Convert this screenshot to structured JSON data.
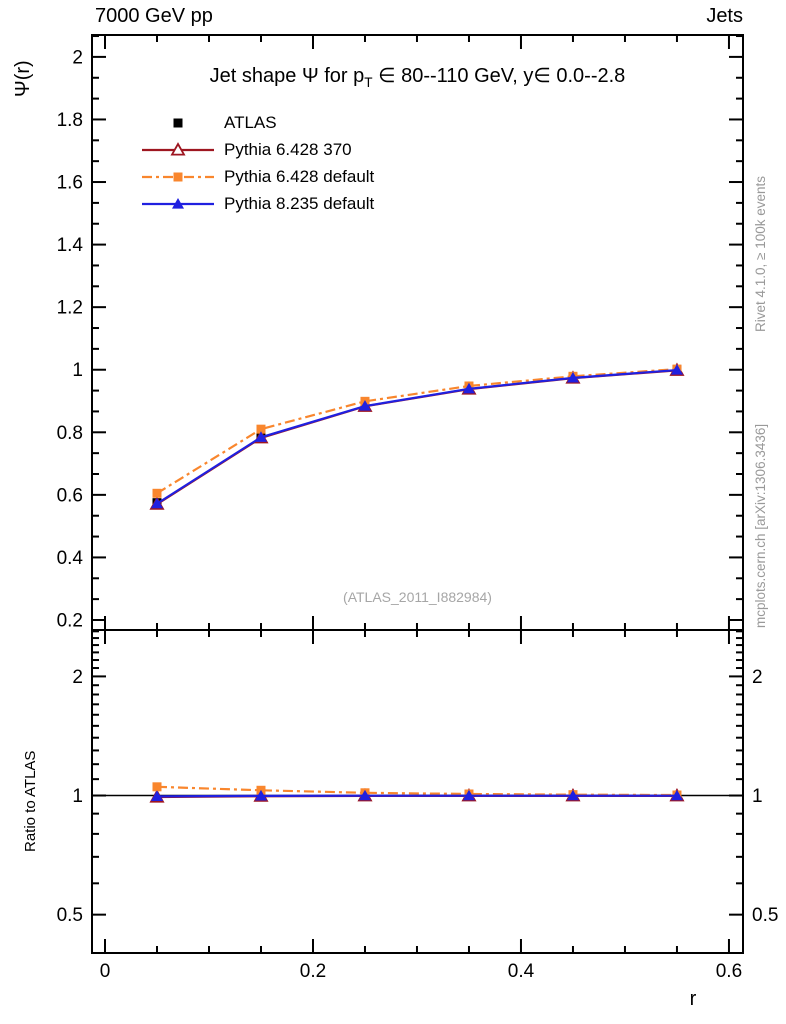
{
  "header": {
    "left": "7000 GeV pp",
    "right": "Jets"
  },
  "title": {
    "pre": "Jet shape Ψ for p",
    "sub": "T",
    "post": " ∈ 80--110 GeV, y∈ 0.0--2.8"
  },
  "watermark": "(ATLAS_2011_I882984)",
  "credits": {
    "rivet": "Rivet 4.1.0, ≥ 100k events",
    "mcplots": "mcplots.cern.ch [arXiv:1306.3436]"
  },
  "colors": {
    "atlas": "#000000",
    "pythia6_370": "#9e1620",
    "pythia6_default": "#f9862d",
    "pythia8_default": "#2020e0",
    "axis": "#000000",
    "gray_text": "#999999"
  },
  "chart_data": {
    "type": "line",
    "xlabel": "r",
    "xlim": [
      -0.0125,
      0.6135
    ],
    "xticks": [
      {
        "v": 0,
        "label": "0"
      },
      {
        "v": 0.2,
        "label": "0.2"
      },
      {
        "v": 0.4,
        "label": "0.4"
      },
      {
        "v": 0.6,
        "label": "0.6"
      }
    ],
    "xminors": [
      0.05,
      0.1,
      0.15,
      0.25,
      0.3,
      0.35,
      0.45,
      0.5,
      0.55
    ],
    "x": [
      0.05,
      0.15,
      0.25,
      0.35,
      0.45,
      0.55
    ],
    "legend_position": "top-left",
    "panels": [
      {
        "name": "main",
        "ylabel": "Ψ(r)",
        "yscale": "linear",
        "ylim": [
          0.168,
          2.07
        ],
        "ytick_label_sides": [
          "left"
        ],
        "yticks": [
          {
            "v": 0.2,
            "label": "0.2"
          },
          {
            "v": 0.4,
            "label": "0.4"
          },
          {
            "v": 0.6,
            "label": "0.6"
          },
          {
            "v": 0.8,
            "label": "0.8"
          },
          {
            "v": 1,
            "label": "1"
          },
          {
            "v": 1.2,
            "label": "1.2"
          },
          {
            "v": 1.4,
            "label": "1.4"
          },
          {
            "v": 1.6,
            "label": "1.6"
          },
          {
            "v": 1.8,
            "label": "1.8"
          },
          {
            "v": 2,
            "label": "2"
          }
        ],
        "yminors": [
          0.2667,
          0.3333,
          0.4667,
          0.5333,
          0.6667,
          0.7333,
          0.8667,
          0.9333,
          1.0667,
          1.1333,
          1.2667,
          1.3333,
          1.4667,
          1.5333,
          1.6667,
          1.7333,
          1.8667,
          1.9333,
          2.0667
        ],
        "series": [
          {
            "name": "ATLAS",
            "color": "#000000",
            "marker": "square",
            "line": "none",
            "values": [
              0.575,
              0.785,
              0.885,
              0.94,
              0.975,
              1.0
            ]
          },
          {
            "name": "Pythia 6.428 370",
            "color": "#9e1620",
            "marker": "triangle-open",
            "line": "solid",
            "values": [
              0.57,
              0.782,
              0.883,
              0.938,
              0.973,
              0.998
            ]
          },
          {
            "name": "Pythia 6.428 default",
            "color": "#f9862d",
            "marker": "square",
            "line": "dashdot",
            "values": [
              0.605,
              0.81,
              0.899,
              0.948,
              0.979,
              1.002
            ]
          },
          {
            "name": "Pythia 8.235 default",
            "color": "#2020e0",
            "marker": "triangle",
            "line": "solid",
            "values": [
              0.572,
              0.784,
              0.884,
              0.939,
              0.974,
              0.999
            ]
          }
        ]
      },
      {
        "name": "ratio",
        "ylabel": "Ratio to ATLAS",
        "yscale": "log",
        "ylim": [
          0.4,
          2.62
        ],
        "ref_line": 1,
        "ytick_label_sides": [
          "left",
          "right"
        ],
        "yticks": [
          {
            "v": 0.5,
            "label": "0.5"
          },
          {
            "v": 1,
            "label": "1"
          },
          {
            "v": 2,
            "label": "2"
          }
        ],
        "yminors": [
          0.4,
          0.6,
          0.7,
          0.8,
          0.9,
          1.1,
          1.2,
          1.3,
          1.4,
          1.5,
          1.6,
          1.7,
          1.8,
          1.9,
          2.1,
          2.2,
          2.3,
          2.4,
          2.5,
          2.6
        ],
        "series": [
          {
            "name": "Pythia 6.428 370",
            "color": "#9e1620",
            "marker": "triangle-open",
            "line": "solid",
            "values": [
              0.991,
              0.996,
              0.998,
              0.998,
              0.998,
              0.998
            ]
          },
          {
            "name": "Pythia 6.428 default",
            "color": "#f9862d",
            "marker": "square",
            "line": "dashdot",
            "values": [
              1.052,
              1.031,
              1.016,
              1.009,
              1.005,
              1.003
            ]
          },
          {
            "name": "Pythia 8.235 default",
            "color": "#2020e0",
            "marker": "triangle",
            "line": "solid",
            "values": [
              0.995,
              0.998,
              0.999,
              0.999,
              0.999,
              0.999
            ]
          }
        ]
      }
    ]
  }
}
